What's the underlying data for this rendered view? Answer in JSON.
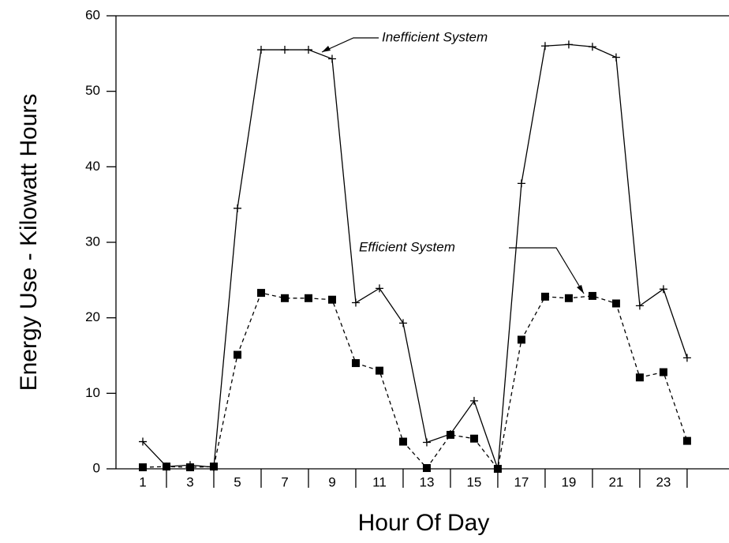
{
  "chart_data": {
    "type": "line",
    "x": [
      1,
      2,
      3,
      4,
      5,
      6,
      7,
      8,
      9,
      10,
      11,
      12,
      13,
      14,
      15,
      16,
      17,
      18,
      19,
      20,
      21,
      22,
      23,
      24
    ],
    "series": [
      {
        "name": "Inefficient System",
        "color": "#000000",
        "marker": "plus",
        "dash": "solid",
        "values": [
          3.6,
          0.3,
          0.5,
          0.2,
          34.5,
          55.5,
          55.5,
          55.5,
          54.3,
          22,
          23.9,
          19.3,
          3.5,
          4.6,
          9,
          0,
          37.8,
          56,
          56.2,
          55.9,
          54.5,
          21.6,
          23.8,
          14.7
        ]
      },
      {
        "name": "Efficient System",
        "color": "#000000",
        "marker": "square",
        "dash": "dashed",
        "values": [
          0.2,
          0.3,
          0.2,
          0.3,
          15.1,
          23.3,
          22.6,
          22.6,
          22.4,
          14,
          13,
          3.6,
          0.1,
          4.5,
          4,
          0,
          17.1,
          22.8,
          22.6,
          22.9,
          21.9,
          12.1,
          12.8,
          3.7
        ]
      }
    ],
    "xlabel": "Hour Of Day",
    "ylabel": "Energy Use - Kilowatt Hours",
    "xlim": [
      0,
      25.77
    ],
    "xticks": [
      1,
      3,
      5,
      7,
      9,
      11,
      13,
      15,
      17,
      19,
      21,
      23
    ],
    "xminorticks": [
      2,
      4,
      6,
      8,
      10,
      12,
      14,
      16,
      18,
      20,
      22,
      24
    ],
    "ylim": [
      0,
      60
    ],
    "yticks": [
      0,
      10,
      20,
      30,
      40,
      50,
      60
    ]
  }
}
